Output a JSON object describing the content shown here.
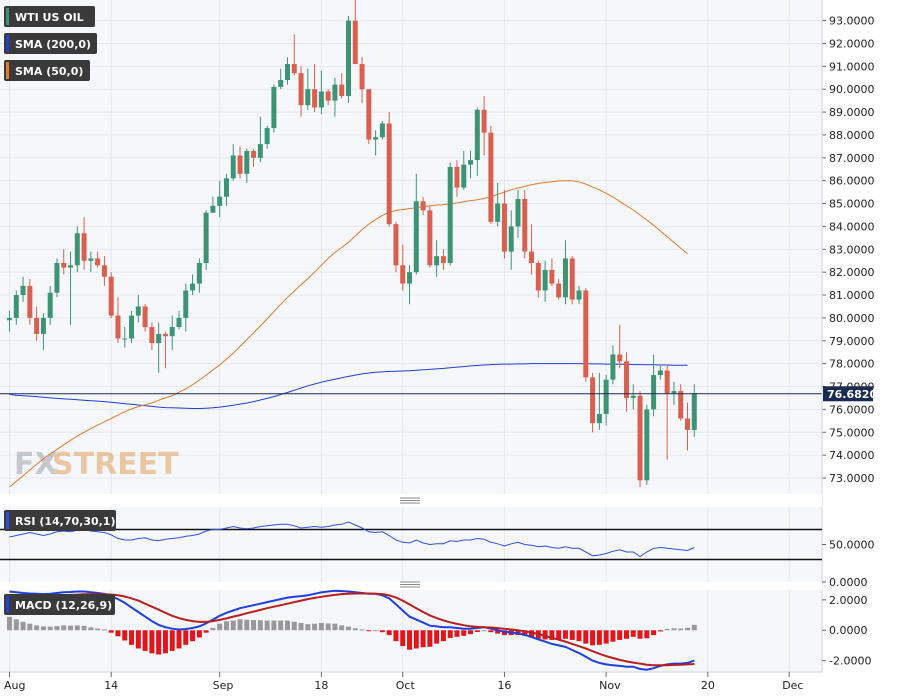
{
  "colors": {
    "up": "#3d9474",
    "down": "#d9604f",
    "sma200": "#1f3fd1",
    "sma50": "#e07b2c",
    "rsi": "#2f4fe0",
    "macd": "#1e3fe0",
    "signal": "#b81f1f",
    "hist_pos": "#999999",
    "hist_neg": "#e0161b",
    "panel_bg": "#f6f7fb",
    "grid": "#e6e8ef"
  },
  "legend": {
    "wti": "WTI US OIL",
    "sma200": "SMA (200,0)",
    "sma50": "SMA (50,0)",
    "rsi": "RSI (14,70,30,1)",
    "macd": "MACD (12,26,9)"
  },
  "watermark": {
    "fx": "FX",
    "street": "STREET"
  },
  "last_price_label": "76.6820",
  "chart_data": [
    {
      "type": "candlestick",
      "title": "WTI US OIL",
      "x_tick_labels": [
        "Aug",
        "14",
        "Sep",
        "18",
        "Oct",
        "16",
        "Nov",
        "20",
        "Dec"
      ],
      "x_tick_index": [
        0,
        15,
        31,
        46,
        58,
        73,
        88,
        103,
        115
      ],
      "y_tick_labels": [
        "73.0000",
        "74.0000",
        "75.0000",
        "76.0000",
        "77.0000",
        "78.0000",
        "79.0000",
        "80.0000",
        "81.0000",
        "82.0000",
        "83.0000",
        "84.0000",
        "85.0000",
        "86.0000",
        "87.0000",
        "88.0000",
        "89.0000",
        "90.0000",
        "91.0000",
        "92.0000",
        "93.0000"
      ],
      "ylim": [
        72.3,
        93.9
      ],
      "last_price": 76.682,
      "candles": [
        [
          79.9,
          80.3,
          79.4,
          80.0
        ],
        [
          80.0,
          81.2,
          79.7,
          81.0
        ],
        [
          81.0,
          81.8,
          80.7,
          81.4
        ],
        [
          81.4,
          81.7,
          79.7,
          80.0
        ],
        [
          80.0,
          80.5,
          79.0,
          79.3
        ],
        [
          79.3,
          80.2,
          78.6,
          80.0
        ],
        [
          80.0,
          81.4,
          79.7,
          81.1
        ],
        [
          81.1,
          82.6,
          80.9,
          82.4
        ],
        [
          82.4,
          83.0,
          81.9,
          82.2
        ],
        [
          82.2,
          82.9,
          79.7,
          82.3
        ],
        [
          82.3,
          84.0,
          82.0,
          83.7
        ],
        [
          83.7,
          84.4,
          82.1,
          82.5
        ],
        [
          82.5,
          82.9,
          82.0,
          82.6
        ],
        [
          82.6,
          82.9,
          82.2,
          82.3
        ],
        [
          82.3,
          82.7,
          81.4,
          81.8
        ],
        [
          81.8,
          82.0,
          80.0,
          80.1
        ],
        [
          80.1,
          80.9,
          78.9,
          79.1
        ],
        [
          79.1,
          79.6,
          78.7,
          79.1
        ],
        [
          79.1,
          80.3,
          78.9,
          80.1
        ],
        [
          80.1,
          81.0,
          79.8,
          80.5
        ],
        [
          80.5,
          80.6,
          79.4,
          79.6
        ],
        [
          79.6,
          79.8,
          78.6,
          78.9
        ],
        [
          78.9,
          79.8,
          77.6,
          79.3
        ],
        [
          79.3,
          79.4,
          77.8,
          79.2
        ],
        [
          79.2,
          80.1,
          78.6,
          79.6
        ],
        [
          79.6,
          80.3,
          79.5,
          80.0
        ],
        [
          80.0,
          81.5,
          79.4,
          81.2
        ],
        [
          81.2,
          81.9,
          81.0,
          81.5
        ],
        [
          81.5,
          82.6,
          81.1,
          82.4
        ],
        [
          82.4,
          84.7,
          82.1,
          84.6
        ],
        [
          84.6,
          85.3,
          84.6,
          84.9
        ],
        [
          84.9,
          86.0,
          84.4,
          85.3
        ],
        [
          85.3,
          86.3,
          84.9,
          86.1
        ],
        [
          86.1,
          87.6,
          86.0,
          87.1
        ],
        [
          87.1,
          87.5,
          86.1,
          86.3
        ],
        [
          86.3,
          87.4,
          85.9,
          87.3
        ],
        [
          87.3,
          87.4,
          86.6,
          87.0
        ],
        [
          87.0,
          88.8,
          86.8,
          87.6
        ],
        [
          87.6,
          88.4,
          87.4,
          88.3
        ],
        [
          88.3,
          90.2,
          88.1,
          90.1
        ],
        [
          90.1,
          90.9,
          90.0,
          90.4
        ],
        [
          90.4,
          91.4,
          90.2,
          91.1
        ],
        [
          91.1,
          92.4,
          90.6,
          90.7
        ],
        [
          90.7,
          91.0,
          88.8,
          89.3
        ],
        [
          89.3,
          90.9,
          89.1,
          90.0
        ],
        [
          90.0,
          91.1,
          89.0,
          89.2
        ],
        [
          89.2,
          90.8,
          88.9,
          89.9
        ],
        [
          89.9,
          90.0,
          89.3,
          89.5
        ],
        [
          89.5,
          90.5,
          88.8,
          90.2
        ],
        [
          90.2,
          90.7,
          89.6,
          89.7
        ],
        [
          89.7,
          93.2,
          89.4,
          93.0
        ],
        [
          93.0,
          93.9,
          91.2,
          91.1
        ],
        [
          91.1,
          91.4,
          89.4,
          90.0
        ],
        [
          90.0,
          90.0,
          87.6,
          87.8
        ],
        [
          87.8,
          88.2,
          87.1,
          87.9
        ],
        [
          87.9,
          88.6,
          87.8,
          88.5
        ],
        [
          88.5,
          89.0,
          84.0,
          84.1
        ],
        [
          84.1,
          84.2,
          82.0,
          82.3
        ],
        [
          82.3,
          83.2,
          81.2,
          81.5
        ],
        [
          81.5,
          82.3,
          80.6,
          82.0
        ],
        [
          82.0,
          86.3,
          81.9,
          85.1
        ],
        [
          85.1,
          85.3,
          84.5,
          84.7
        ],
        [
          84.7,
          84.9,
          82.2,
          82.3
        ],
        [
          82.3,
          83.4,
          81.8,
          82.7
        ],
        [
          82.7,
          83.0,
          82.1,
          82.4
        ],
        [
          82.4,
          86.8,
          82.3,
          86.6
        ],
        [
          86.6,
          86.9,
          85.3,
          85.7
        ],
        [
          85.7,
          87.3,
          85.6,
          86.7
        ],
        [
          86.7,
          87.3,
          86.1,
          86.9
        ],
        [
          86.9,
          89.2,
          86.2,
          89.1
        ],
        [
          89.1,
          89.7,
          87.1,
          88.1
        ],
        [
          88.1,
          88.4,
          84.1,
          84.2
        ],
        [
          84.2,
          85.9,
          84.0,
          85.0
        ],
        [
          85.0,
          85.6,
          82.6,
          82.9
        ],
        [
          82.9,
          84.7,
          82.1,
          84.0
        ],
        [
          84.0,
          85.6,
          83.5,
          85.2
        ],
        [
          85.2,
          85.6,
          82.6,
          82.9
        ],
        [
          82.9,
          84.1,
          81.9,
          82.4
        ],
        [
          82.4,
          82.5,
          80.9,
          81.2
        ],
        [
          81.2,
          82.5,
          80.7,
          82.1
        ],
        [
          82.1,
          82.6,
          81.4,
          81.5
        ],
        [
          81.5,
          81.7,
          80.8,
          80.9
        ],
        [
          80.9,
          83.4,
          80.6,
          82.6
        ],
        [
          82.6,
          82.7,
          80.6,
          80.8
        ],
        [
          80.8,
          81.4,
          80.6,
          81.2
        ],
        [
          81.2,
          81.3,
          77.2,
          77.4
        ],
        [
          77.4,
          77.6,
          75.0,
          75.4
        ],
        [
          75.4,
          77.6,
          75.1,
          75.8
        ],
        [
          75.8,
          77.5,
          75.3,
          77.3
        ],
        [
          77.3,
          78.8,
          77.1,
          78.4
        ],
        [
          78.4,
          79.7,
          77.8,
          78.1
        ],
        [
          78.1,
          78.5,
          75.9,
          76.5
        ],
        [
          76.5,
          77.1,
          76.0,
          76.6
        ],
        [
          76.6,
          76.8,
          72.6,
          72.9
        ],
        [
          72.9,
          76.2,
          72.7,
          76.0
        ],
        [
          76.0,
          78.4,
          75.7,
          77.5
        ],
        [
          77.5,
          77.9,
          77.3,
          77.7
        ],
        [
          77.7,
          77.9,
          73.8,
          76.7
        ],
        [
          76.7,
          77.2,
          76.2,
          76.8
        ],
        [
          76.8,
          77.1,
          75.5,
          75.6
        ],
        [
          75.6,
          76.3,
          74.2,
          75.1
        ],
        [
          75.1,
          77.1,
          74.8,
          76.7
        ]
      ],
      "sma50": [
        72.6,
        72.85,
        73.1,
        73.35,
        73.6,
        73.84,
        74.05,
        74.25,
        74.45,
        74.65,
        74.83,
        75.0,
        75.16,
        75.31,
        75.46,
        75.6,
        75.75,
        75.9,
        76.02,
        76.12,
        76.2,
        76.28,
        76.4,
        76.5,
        76.6,
        76.75,
        76.9,
        77.08,
        77.28,
        77.5,
        77.72,
        77.95,
        78.2,
        78.45,
        78.75,
        79.05,
        79.35,
        79.65,
        79.95,
        80.27,
        80.6,
        80.9,
        81.17,
        81.45,
        81.72,
        82.0,
        82.3,
        82.6,
        82.86,
        83.08,
        83.3,
        83.58,
        83.86,
        84.1,
        84.3,
        84.48,
        84.62,
        84.7,
        84.74,
        84.78,
        84.82,
        84.86,
        84.9,
        84.93,
        84.95,
        84.99,
        85.03,
        85.08,
        85.13,
        85.17,
        85.22,
        85.3,
        85.4,
        85.5,
        85.6,
        85.68,
        85.75,
        85.82,
        85.88,
        85.92,
        85.95,
        85.99,
        86.0,
        86.0,
        85.95,
        85.85,
        85.72,
        85.6,
        85.45,
        85.28,
        85.1,
        84.9,
        84.72,
        84.5,
        84.28,
        84.05,
        83.8,
        83.55,
        83.3,
        83.05,
        82.8
      ],
      "sma200": [
        76.65,
        76.62,
        76.6,
        76.58,
        76.56,
        76.53,
        76.5,
        76.48,
        76.46,
        76.44,
        76.42,
        76.4,
        76.38,
        76.36,
        76.34,
        76.31,
        76.28,
        76.25,
        76.22,
        76.19,
        76.16,
        76.13,
        76.1,
        76.08,
        76.07,
        76.06,
        76.05,
        76.04,
        76.04,
        76.05,
        76.07,
        76.1,
        76.14,
        76.18,
        76.23,
        76.28,
        76.34,
        76.41,
        76.48,
        76.56,
        76.65,
        76.74,
        76.84,
        76.93,
        77.03,
        77.11,
        77.19,
        77.26,
        77.32,
        77.38,
        77.44,
        77.5,
        77.55,
        77.59,
        77.62,
        77.64,
        77.66,
        77.67,
        77.68,
        77.69,
        77.71,
        77.73,
        77.75,
        77.77,
        77.79,
        77.82,
        77.85,
        77.87,
        77.9,
        77.92,
        77.94,
        77.96,
        77.97,
        77.98,
        77.98,
        77.99,
        77.99,
        78.0,
        78.0,
        78.0,
        78.0,
        78.0,
        78.0,
        78.0,
        78.0,
        78.0,
        77.99,
        77.99,
        77.98,
        77.98,
        77.97,
        77.97,
        77.96,
        77.96,
        77.95,
        77.95,
        77.94,
        77.94,
        77.93,
        77.93,
        77.93
      ]
    },
    {
      "type": "line",
      "title": "RSI (14,70,30,1)",
      "y_tick_labels": [
        "50.0000",
        "0.0000"
      ],
      "ylim": [
        0,
        100
      ],
      "levels": [
        70,
        30
      ],
      "series": [
        {
          "name": "RSI (14,70,30,1)",
          "values": [
            60,
            62,
            64,
            66,
            64,
            62,
            64,
            67,
            68,
            67,
            69,
            70,
            68,
            67,
            66,
            63,
            58,
            56,
            56,
            58,
            59,
            56,
            55,
            57,
            58,
            59,
            61,
            62,
            64,
            68,
            70,
            70,
            72,
            74,
            72,
            71,
            72,
            74,
            75,
            76,
            77,
            77,
            75,
            72,
            73,
            74,
            73,
            74,
            76,
            77,
            80,
            76,
            72,
            67,
            66,
            67,
            62,
            56,
            53,
            52,
            56,
            52,
            50,
            51,
            51,
            55,
            54,
            56,
            56,
            58,
            57,
            53,
            51,
            48,
            51,
            53,
            50,
            49,
            47,
            48,
            46,
            45,
            47,
            45,
            45,
            40,
            35,
            36,
            38,
            41,
            43,
            40,
            40,
            34,
            40,
            45,
            46,
            45,
            44,
            43,
            42,
            46
          ]
        }
      ]
    },
    {
      "type": "line",
      "title": "MACD (12,26,9)",
      "y_tick_labels": [
        "2.0000",
        "0.0000",
        "-2.0000"
      ],
      "ylim": [
        -2.75,
        2.65
      ],
      "series": [
        {
          "name": "MACD",
          "values": [
            2.55,
            2.5,
            2.45,
            2.42,
            2.4,
            2.38,
            2.4,
            2.45,
            2.5,
            2.52,
            2.55,
            2.55,
            2.5,
            2.45,
            2.4,
            2.25,
            2.05,
            1.8,
            1.5,
            1.2,
            0.9,
            0.6,
            0.35,
            0.2,
            0.1,
            0.05,
            0.08,
            0.15,
            0.25,
            0.45,
            0.7,
            0.95,
            1.15,
            1.3,
            1.45,
            1.55,
            1.65,
            1.75,
            1.85,
            1.95,
            2.05,
            2.15,
            2.2,
            2.25,
            2.3,
            2.4,
            2.5,
            2.55,
            2.6,
            2.58,
            2.55,
            2.5,
            2.45,
            2.4,
            2.4,
            2.3,
            2.1,
            1.7,
            1.3,
            0.9,
            0.7,
            0.5,
            0.3,
            0.25,
            0.2,
            0.2,
            0.15,
            0.1,
            0.1,
            0.15,
            0.2,
            0.1,
            0.0,
            -0.1,
            -0.15,
            -0.2,
            -0.3,
            -0.45,
            -0.6,
            -0.75,
            -0.9,
            -1.0,
            -1.1,
            -1.3,
            -1.5,
            -1.75,
            -2.0,
            -2.15,
            -2.25,
            -2.3,
            -2.35,
            -2.4,
            -2.4,
            -2.55,
            -2.6,
            -2.5,
            -2.35,
            -2.25,
            -2.2,
            -2.2,
            -2.15,
            -2.0
          ]
        },
        {
          "name": "Signal",
          "values": [
            2.0,
            2.05,
            2.1,
            2.15,
            2.2,
            2.22,
            2.25,
            2.28,
            2.3,
            2.33,
            2.35,
            2.37,
            2.38,
            2.38,
            2.37,
            2.35,
            2.3,
            2.22,
            2.1,
            1.95,
            1.75,
            1.55,
            1.35,
            1.15,
            0.95,
            0.8,
            0.68,
            0.6,
            0.55,
            0.55,
            0.6,
            0.68,
            0.78,
            0.9,
            1.0,
            1.12,
            1.23,
            1.34,
            1.45,
            1.55,
            1.65,
            1.75,
            1.85,
            1.95,
            2.05,
            2.13,
            2.2,
            2.27,
            2.33,
            2.38,
            2.4,
            2.42,
            2.42,
            2.42,
            2.4,
            2.38,
            2.3,
            2.15,
            1.95,
            1.7,
            1.45,
            1.2,
            0.98,
            0.8,
            0.65,
            0.52,
            0.42,
            0.33,
            0.26,
            0.22,
            0.2,
            0.18,
            0.14,
            0.1,
            0.05,
            0.0,
            -0.07,
            -0.15,
            -0.25,
            -0.37,
            -0.5,
            -0.62,
            -0.75,
            -0.9,
            -1.05,
            -1.2,
            -1.38,
            -1.55,
            -1.7,
            -1.83,
            -1.95,
            -2.05,
            -2.13,
            -2.2,
            -2.27,
            -2.3,
            -2.3,
            -2.3,
            -2.28,
            -2.27,
            -2.25,
            -2.22
          ]
        }
      ]
    }
  ]
}
